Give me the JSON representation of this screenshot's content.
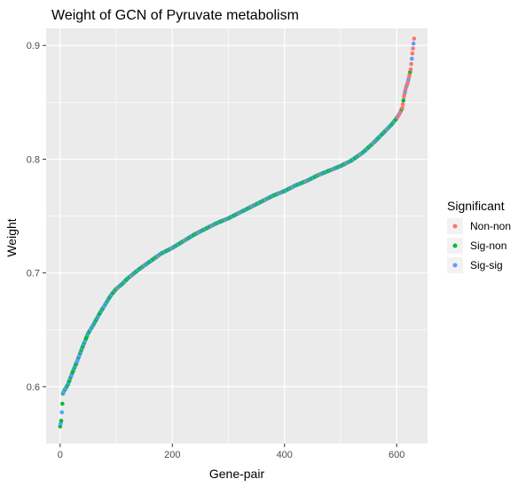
{
  "chart_data": {
    "type": "scatter",
    "title": "Weight of GCN of Pyruvate metabolism",
    "xlabel": "Gene-pair",
    "ylabel": "Weight",
    "xlim": [
      -25,
      655
    ],
    "ylim": [
      0.55,
      0.915
    ],
    "x_ticks": [
      0,
      200,
      400,
      600
    ],
    "y_ticks": [
      0.6,
      0.7,
      0.8,
      0.9
    ],
    "x_tick_labels": [
      "0",
      "200",
      "400",
      "600"
    ],
    "y_tick_labels": [
      "0.6",
      "0.7",
      "0.8",
      "0.9"
    ],
    "grid": true,
    "legend": {
      "title": "Significant",
      "placement": "right",
      "entries": [
        "Non-non",
        "Sig-non",
        "Sig-sig"
      ]
    },
    "colors": {
      "Non-non": "#f8766d",
      "Sig-non": "#00ba38",
      "Sig-sig": "#619cff",
      "panel": "#ebebeb",
      "grid": "#ffffff"
    },
    "n_points": 632,
    "curve_knots": {
      "x": [
        0,
        2,
        4,
        5,
        8,
        14,
        20,
        30,
        40,
        50,
        60,
        70,
        80,
        90,
        100,
        110,
        120,
        140,
        160,
        180,
        200,
        220,
        240,
        260,
        280,
        300,
        320,
        340,
        360,
        380,
        400,
        420,
        440,
        460,
        480,
        500,
        520,
        540,
        560,
        580,
        590,
        600,
        605,
        610,
        613,
        616,
        620,
        625,
        628,
        631
      ],
      "y": [
        0.565,
        0.57,
        0.585,
        0.594,
        0.597,
        0.602,
        0.61,
        0.622,
        0.635,
        0.647,
        0.655,
        0.664,
        0.672,
        0.68,
        0.686,
        0.69,
        0.695,
        0.703,
        0.71,
        0.717,
        0.722,
        0.728,
        0.734,
        0.739,
        0.744,
        0.748,
        0.753,
        0.758,
        0.763,
        0.768,
        0.772,
        0.777,
        0.781,
        0.786,
        0.79,
        0.794,
        0.799,
        0.806,
        0.815,
        0.825,
        0.83,
        0.836,
        0.84,
        0.845,
        0.855,
        0.862,
        0.868,
        0.879,
        0.893,
        0.906
      ]
    },
    "series_pattern": [
      1,
      2,
      1,
      2,
      1,
      1,
      2,
      0,
      2,
      1,
      2,
      2,
      1,
      2,
      1,
      2,
      1,
      1,
      2,
      1,
      2,
      2,
      1,
      1
    ],
    "nonnon_tail_range": [
      600,
      630
    ]
  }
}
